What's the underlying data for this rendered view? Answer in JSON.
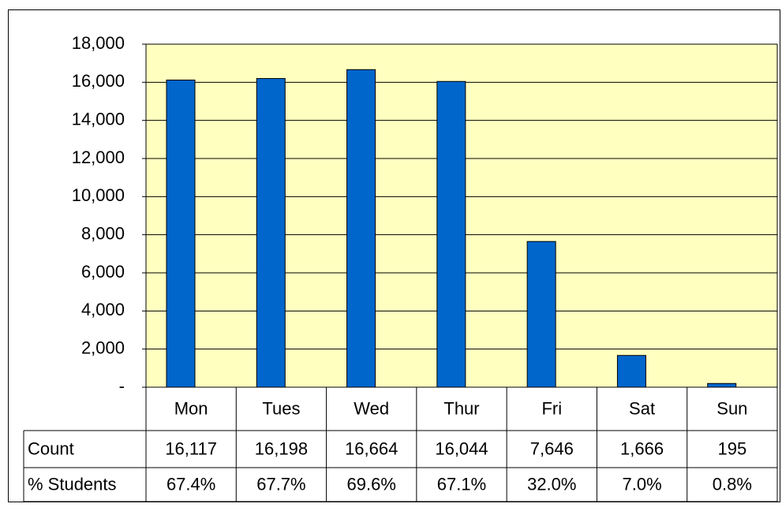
{
  "chart_data": {
    "type": "bar",
    "categories": [
      "Mon",
      "Tues",
      "Wed",
      "Thur",
      "Fri",
      "Sat",
      "Sun"
    ],
    "series": [
      {
        "name": "Count",
        "color": "#0066cc",
        "values": [
          16117,
          16198,
          16664,
          16044,
          7646,
          1666,
          195
        ],
        "value_labels": [
          "16,117",
          "16,198",
          "16,664",
          "16,044",
          "7,646",
          "1,666",
          "195"
        ]
      },
      {
        "name": "% Students",
        "values": [
          67.4,
          67.7,
          69.6,
          67.1,
          32.0,
          7.0,
          0.8
        ],
        "value_labels": [
          "67.4%",
          "67.7%",
          "69.6%",
          "67.1%",
          "32.0%",
          "7.0%",
          "0.8%"
        ]
      }
    ],
    "ylim": [
      0,
      18000
    ],
    "yticks": [
      {
        "value": 0,
        "label": "-"
      },
      {
        "value": 2000,
        "label": "2,000"
      },
      {
        "value": 4000,
        "label": "4,000"
      },
      {
        "value": 6000,
        "label": "6,000"
      },
      {
        "value": 8000,
        "label": "8,000"
      },
      {
        "value": 10000,
        "label": "10,000"
      },
      {
        "value": 12000,
        "label": "12,000"
      },
      {
        "value": 14000,
        "label": "14,000"
      },
      {
        "value": 16000,
        "label": "16,000"
      },
      {
        "value": 18000,
        "label": "18,000"
      }
    ],
    "grid": true,
    "plot_background": "#ffffc0"
  }
}
